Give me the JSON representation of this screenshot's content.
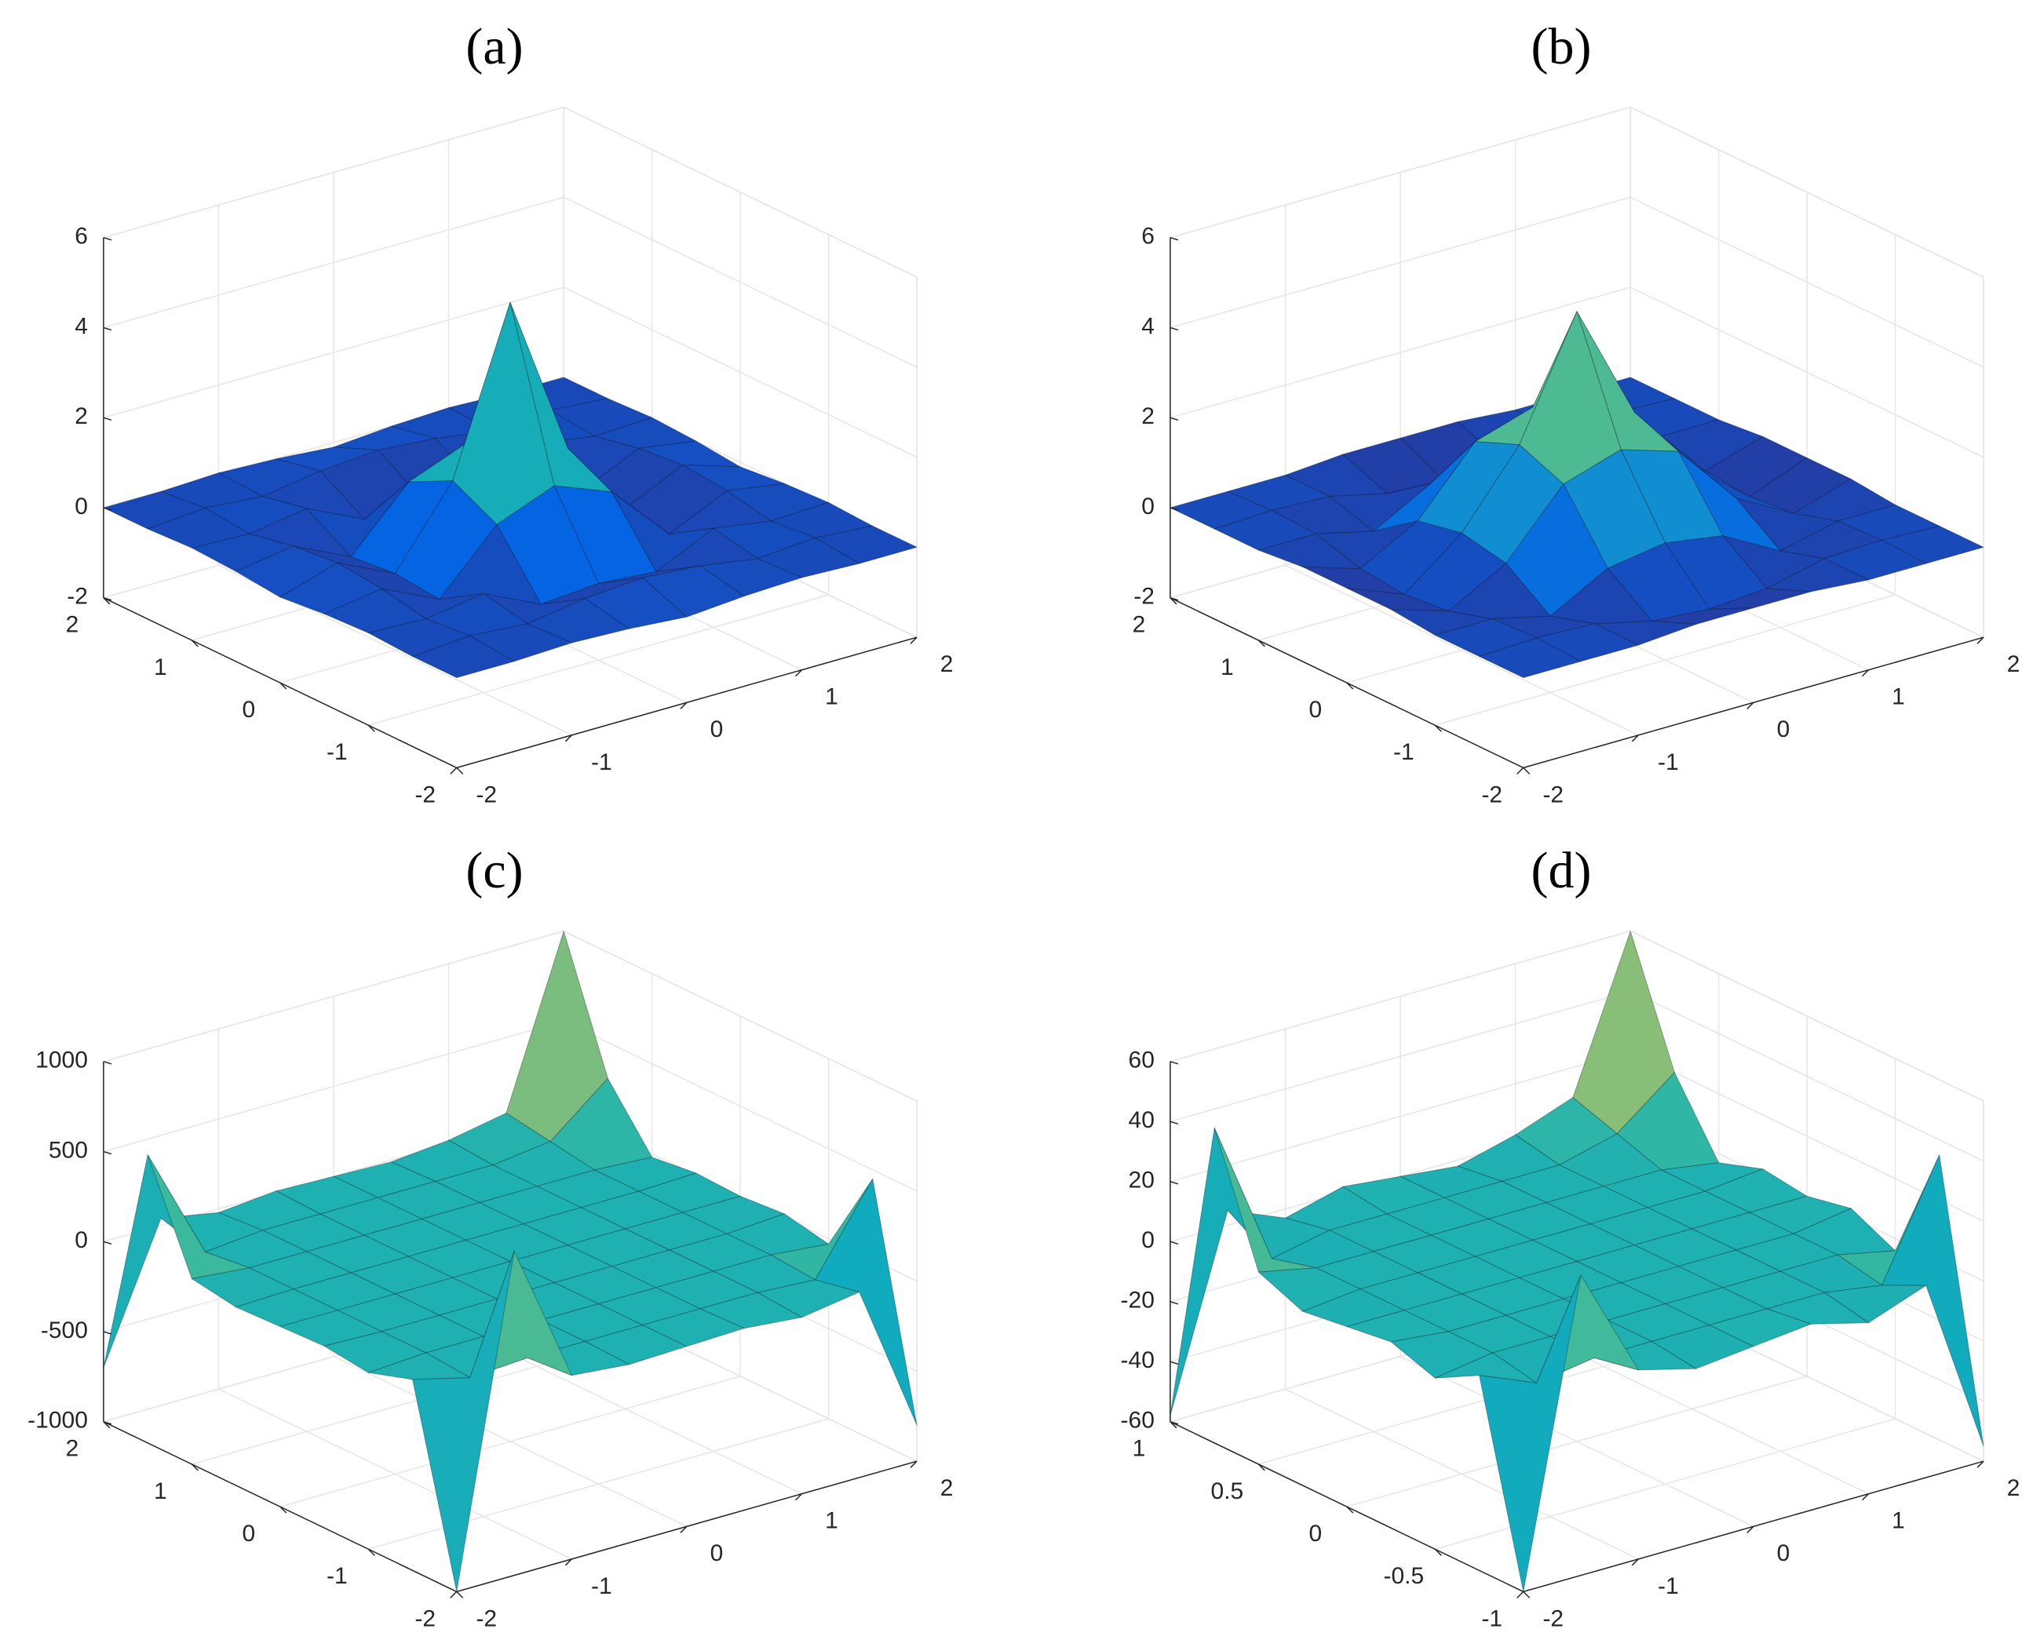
{
  "chart_data": [
    {
      "type": "surface",
      "title": "(a)",
      "colormap": "parula",
      "grid": true,
      "x": [
        -2,
        -1.5,
        -1,
        -0.5,
        0,
        0.5,
        1,
        1.5,
        2
      ],
      "y": [
        -2,
        -1.5,
        -1,
        -0.5,
        0,
        0.5,
        1,
        1.5,
        2
      ],
      "z": [
        [
          0,
          0,
          0.05,
          0,
          -0.1,
          0,
          0.05,
          0,
          0
        ],
        [
          0,
          0.1,
          0,
          0.2,
          0.3,
          0.2,
          0,
          0.1,
          0
        ],
        [
          0.05,
          0,
          0.2,
          -0.4,
          -0.3,
          -0.4,
          0.2,
          0,
          0.05
        ],
        [
          0,
          0.2,
          -0.4,
          0.9,
          1.4,
          0.9,
          -0.4,
          0.2,
          0
        ],
        [
          -0.1,
          0.3,
          -0.3,
          1.4,
          5,
          1.4,
          -0.3,
          0.3,
          -0.1
        ],
        [
          0,
          0.2,
          -0.4,
          0.9,
          1.4,
          0.9,
          -0.4,
          0.2,
          0
        ],
        [
          0.05,
          0,
          0.2,
          -0.4,
          -0.3,
          -0.4,
          0.2,
          0,
          0.05
        ],
        [
          0,
          0.1,
          0,
          0.2,
          0.3,
          0.2,
          0,
          0.1,
          0
        ],
        [
          0,
          0,
          0.05,
          0,
          -0.1,
          0,
          0.05,
          0,
          0
        ]
      ],
      "xlim": [
        -2,
        2
      ],
      "ylim": [
        -2,
        2
      ],
      "zlim": [
        -2,
        6
      ],
      "xticks": [
        -2,
        -1,
        0,
        1,
        2
      ],
      "yticks": [
        -2,
        -1,
        0,
        1,
        2
      ],
      "zticks": [
        -2,
        0,
        2,
        4,
        6
      ]
    },
    {
      "type": "surface",
      "title": "(b)",
      "colormap": "parula",
      "grid": true,
      "x": [
        -2,
        -1.5,
        -1,
        -0.5,
        0,
        0.5,
        1,
        1.5,
        2
      ],
      "y": [
        -2,
        -1.5,
        -1,
        -0.5,
        0,
        0.5,
        1,
        1.5,
        2
      ],
      "z": [
        [
          0,
          0,
          0,
          0.1,
          0.1,
          0.1,
          0,
          0,
          0
        ],
        [
          0,
          0.05,
          0,
          -0.3,
          -0.4,
          -0.3,
          0,
          0.05,
          0
        ],
        [
          0,
          0,
          -0.3,
          0.4,
          0.6,
          0.4,
          -0.3,
          0,
          0
        ],
        [
          0.1,
          -0.3,
          0.4,
          1.8,
          2.2,
          1.8,
          0.4,
          -0.3,
          0.1
        ],
        [
          0.1,
          -0.4,
          0.6,
          2.2,
          4.8,
          2.2,
          0.6,
          -0.4,
          0.1
        ],
        [
          0.1,
          -0.3,
          0.4,
          1.8,
          2.2,
          1.8,
          0.4,
          -0.3,
          0.1
        ],
        [
          0,
          0,
          -0.3,
          0.4,
          0.6,
          0.4,
          -0.3,
          0,
          0
        ],
        [
          0,
          0.05,
          0,
          -0.3,
          -0.4,
          -0.3,
          0,
          0.05,
          0
        ],
        [
          0,
          0,
          0,
          0.1,
          0.1,
          0.1,
          0,
          0,
          0
        ]
      ],
      "xlim": [
        -2,
        2
      ],
      "ylim": [
        -2,
        2
      ],
      "zlim": [
        -2,
        6
      ],
      "xticks": [
        -2,
        -1,
        0,
        1,
        2
      ],
      "yticks": [
        -2,
        -1,
        0,
        1,
        2
      ],
      "zticks": [
        -2,
        0,
        2,
        4,
        6
      ]
    },
    {
      "type": "surface",
      "title": "(c)",
      "colormap": "parula",
      "grid": true,
      "x": [
        -2,
        -1.5,
        -1,
        -0.5,
        0,
        0.5,
        1,
        1.5,
        2
      ],
      "y": [
        -2,
        -1.5,
        -1,
        -0.5,
        0,
        0.5,
        1,
        1.5,
        2
      ],
      "z": [
        [
          -1000,
          800,
          20,
          -10,
          0,
          10,
          -20,
          30,
          -800
        ],
        [
          60,
          -20,
          0,
          0,
          0,
          0,
          0,
          -20,
          450
        ],
        [
          -20,
          0,
          0,
          0,
          0,
          0,
          0,
          0,
          -30
        ],
        [
          10,
          0,
          0,
          0,
          0,
          0,
          0,
          0,
          20
        ],
        [
          0,
          0,
          0,
          0,
          0,
          0,
          0,
          0,
          0
        ],
        [
          -10,
          0,
          0,
          0,
          0,
          0,
          0,
          0,
          10
        ],
        [
          30,
          0,
          0,
          0,
          0,
          0,
          0,
          0,
          -20
        ],
        [
          600,
          -30,
          0,
          0,
          0,
          0,
          0,
          40,
          300
        ],
        [
          -700,
          40,
          -20,
          10,
          0,
          -10,
          20,
          80,
          1000
        ]
      ],
      "xlim": [
        -2,
        2
      ],
      "ylim": [
        -2,
        2
      ],
      "zlim": [
        -1000,
        1000
      ],
      "xticks": [
        -2,
        -1,
        0,
        1,
        2
      ],
      "yticks": [
        -2,
        -1,
        0,
        1,
        2
      ],
      "zticks": [
        -1000,
        -500,
        0,
        500,
        1000
      ]
    },
    {
      "type": "surface",
      "title": "(d)",
      "colormap": "parula",
      "grid": true,
      "x": [
        -2,
        -1.5,
        -1,
        -0.5,
        0,
        0.5,
        1,
        1.5,
        2
      ],
      "y": [
        -1,
        -0.75,
        -0.5,
        -0.25,
        0,
        0.25,
        0.5,
        0.75,
        1
      ],
      "z": [
        [
          -60,
          40,
          3,
          -2,
          0,
          2,
          -3,
          4,
          -55
        ],
        [
          5,
          -3,
          0,
          0,
          0,
          0,
          0,
          -3,
          35
        ],
        [
          -3,
          0,
          0,
          0,
          0,
          0,
          0,
          0,
          -4
        ],
        [
          2,
          0,
          0,
          0,
          0,
          0,
          0,
          0,
          3
        ],
        [
          0,
          0,
          0,
          0,
          0,
          0,
          0,
          0,
          0
        ],
        [
          -2,
          0,
          0,
          0,
          0,
          0,
          0,
          0,
          2
        ],
        [
          4,
          0,
          0,
          0,
          0,
          0,
          0,
          0,
          -3
        ],
        [
          45,
          -4,
          0,
          0,
          0,
          0,
          0,
          5,
          20
        ],
        [
          -58,
          5,
          -3,
          2,
          0,
          -2,
          3,
          10,
          60
        ]
      ],
      "xlim": [
        -2,
        2
      ],
      "ylim": [
        -1,
        1
      ],
      "zlim": [
        -60,
        60
      ],
      "xticks": [
        -2,
        -1,
        0,
        1,
        2
      ],
      "yticks": [
        -1,
        -0.5,
        0,
        0.5,
        1
      ],
      "zticks": [
        -60,
        -40,
        -20,
        0,
        20,
        40,
        60
      ]
    }
  ]
}
